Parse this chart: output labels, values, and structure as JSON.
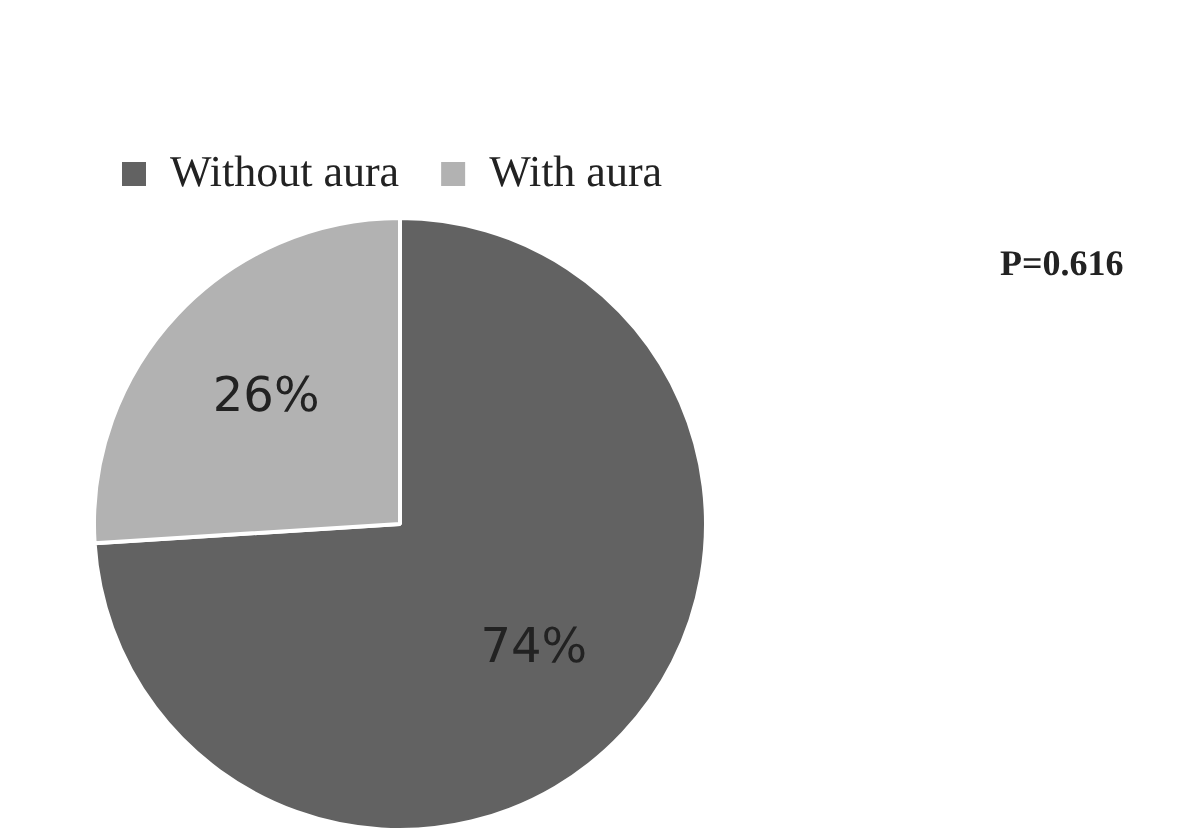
{
  "chart_data": {
    "type": "pie",
    "categories": [
      "Without aura",
      "With aura"
    ],
    "values": [
      74,
      26
    ],
    "colors": [
      "#626262",
      "#b2b2b2"
    ],
    "value_labels": [
      "74%",
      "26%"
    ],
    "legend": "top left",
    "annotations": [
      "P=0.616"
    ]
  }
}
